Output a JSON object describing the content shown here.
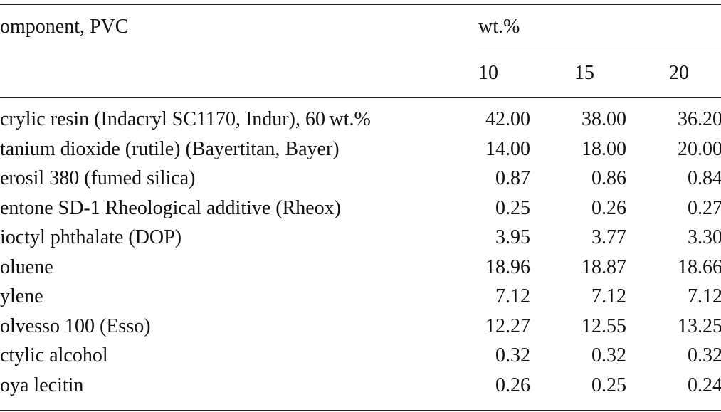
{
  "table": {
    "header": [
      "omponent, PVC",
      "wt.%"
    ],
    "subheader": [
      "10",
      "15",
      "20"
    ],
    "rows": [
      [
        "crylic resin (Indacryl SC1170, Indur), 60 wt.%",
        "42.00",
        "38.00",
        "36.20"
      ],
      [
        "tanium dioxide (rutile) (Bayertitan, Bayer)",
        "14.00",
        "18.00",
        "20.00"
      ],
      [
        "erosil 380 (fumed silica)",
        "0.87",
        "0.86",
        "0.84"
      ],
      [
        "entone SD-1 Rheological additive (Rheox)",
        "0.25",
        "0.26",
        "0.27"
      ],
      [
        "ioctyl phthalate (DOP)",
        "3.95",
        "3.77",
        "3.30"
      ],
      [
        "oluene",
        "18.96",
        "18.87",
        "18.66"
      ],
      [
        "ylene",
        "7.12",
        "7.12",
        "7.12"
      ],
      [
        "olvesso 100 (Esso)",
        "12.27",
        "12.55",
        "13.25"
      ],
      [
        "ctylic alcohol",
        "0.32",
        "0.32",
        "0.32"
      ],
      [
        "oya lecitin",
        "0.26",
        "0.25",
        "0.24"
      ]
    ]
  }
}
